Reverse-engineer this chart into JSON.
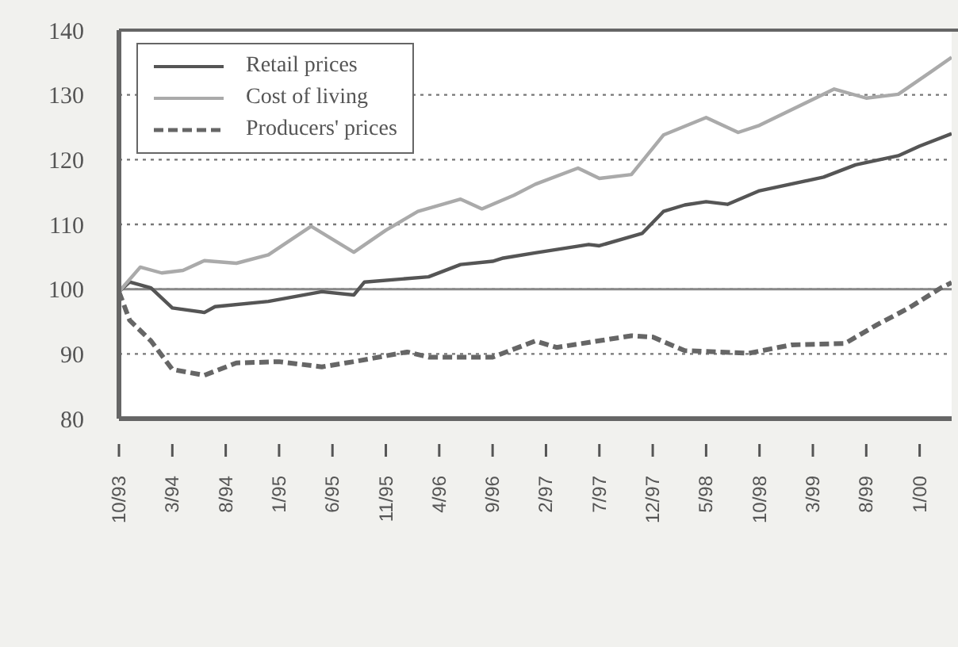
{
  "chart_data": {
    "type": "line",
    "xlim": [
      "1993-10",
      "2000-04"
    ],
    "xticks": [
      {
        "value": "1993-10",
        "label": "10/93"
      },
      {
        "value": "1994-03",
        "label": "3/94"
      },
      {
        "value": "1994-08",
        "label": "8/94"
      },
      {
        "value": "1995-01",
        "label": "1/95"
      },
      {
        "value": "1995-06",
        "label": "6/95"
      },
      {
        "value": "1995-11",
        "label": "11/95"
      },
      {
        "value": "1996-04",
        "label": "4/96"
      },
      {
        "value": "1996-09",
        "label": "9/96"
      },
      {
        "value": "1997-02",
        "label": "2/97"
      },
      {
        "value": "1997-07",
        "label": "7/97"
      },
      {
        "value": "1997-12",
        "label": "12/97"
      },
      {
        "value": "1998-05",
        "label": "5/98"
      },
      {
        "value": "1998-10",
        "label": "10/98"
      },
      {
        "value": "1999-03",
        "label": "3/99"
      },
      {
        "value": "1999-08",
        "label": "8/99"
      },
      {
        "value": "2000-01",
        "label": "1/00"
      }
    ],
    "ylim": [
      80,
      140
    ],
    "yticks": [
      80,
      90,
      100,
      110,
      120,
      130,
      140
    ],
    "grid": "y",
    "legend": "top left",
    "marker": "none",
    "ref_lines": [
      {
        "axis": "y",
        "value": 100,
        "line_style": "solid",
        "color": "#888888"
      }
    ],
    "series": [
      {
        "name": "Retail prices",
        "color": "#555555",
        "line_style": "solid",
        "x": [
          "1993-10",
          "1993-11",
          "1994-01",
          "1994-03",
          "1994-06",
          "1994-07",
          "1994-12",
          "1995-05",
          "1995-08",
          "1995-09",
          "1996-03",
          "1996-06",
          "1996-09",
          "1996-10",
          "1997-01",
          "1997-06",
          "1997-07",
          "1997-11",
          "1998-01",
          "1998-03",
          "1998-05",
          "1998-07",
          "1998-10",
          "1999-04",
          "1999-07",
          "1999-11",
          "2000-01",
          "2000-04"
        ],
        "values": [
          99.6,
          101.1,
          100.2,
          97.1,
          96.4,
          97.3,
          98.1,
          99.6,
          99.1,
          101.1,
          101.9,
          103.8,
          104.3,
          104.8,
          105.6,
          106.9,
          106.7,
          108.6,
          112,
          113,
          113.5,
          113.1,
          115.2,
          117.3,
          119.2,
          120.6,
          122.1,
          124
        ]
      },
      {
        "name": "Cost of living",
        "color": "#aaaaaa",
        "line_style": "solid",
        "x": [
          "1993-10",
          "1993-12",
          "1994-02",
          "1994-04",
          "1994-06",
          "1994-09",
          "1994-12",
          "1995-04",
          "1995-08",
          "1995-11",
          "1996-02",
          "1996-06",
          "1996-08",
          "1996-11",
          "1997-01",
          "1997-05",
          "1997-07",
          "1997-10",
          "1998-01",
          "1998-05",
          "1998-08",
          "1998-10",
          "1999-05",
          "1999-08",
          "1999-11",
          "2000-02",
          "2000-04"
        ],
        "values": [
          99.6,
          103.4,
          102.5,
          102.9,
          104.4,
          104,
          105.3,
          109.7,
          105.7,
          109.1,
          112,
          113.9,
          112.4,
          114.5,
          116.2,
          118.7,
          117.1,
          117.7,
          123.8,
          126.5,
          124.2,
          125.3,
          130.9,
          129.5,
          130.1,
          133.5,
          135.8
        ]
      },
      {
        "name": "Producers' prices",
        "color": "#666666",
        "line_style": "dashed",
        "x": [
          "1993-10",
          "1993-11",
          "1994-01",
          "1994-03",
          "1994-06",
          "1994-09",
          "1995-01",
          "1995-05",
          "1995-08",
          "1996-01",
          "1996-03",
          "1996-09",
          "1997-01",
          "1997-03",
          "1997-10",
          "1997-12",
          "1998-03",
          "1998-09",
          "1999-01",
          "1999-06",
          "1999-09",
          "1999-12",
          "2000-03",
          "2000-04"
        ],
        "values": [
          99.6,
          95.2,
          92,
          87.6,
          86.7,
          88.6,
          88.8,
          88,
          88.8,
          90.3,
          89.5,
          89.5,
          92,
          91,
          92.8,
          92.6,
          90.5,
          90.1,
          91.4,
          91.6,
          94.5,
          97.1,
          100.2,
          101
        ]
      }
    ]
  }
}
